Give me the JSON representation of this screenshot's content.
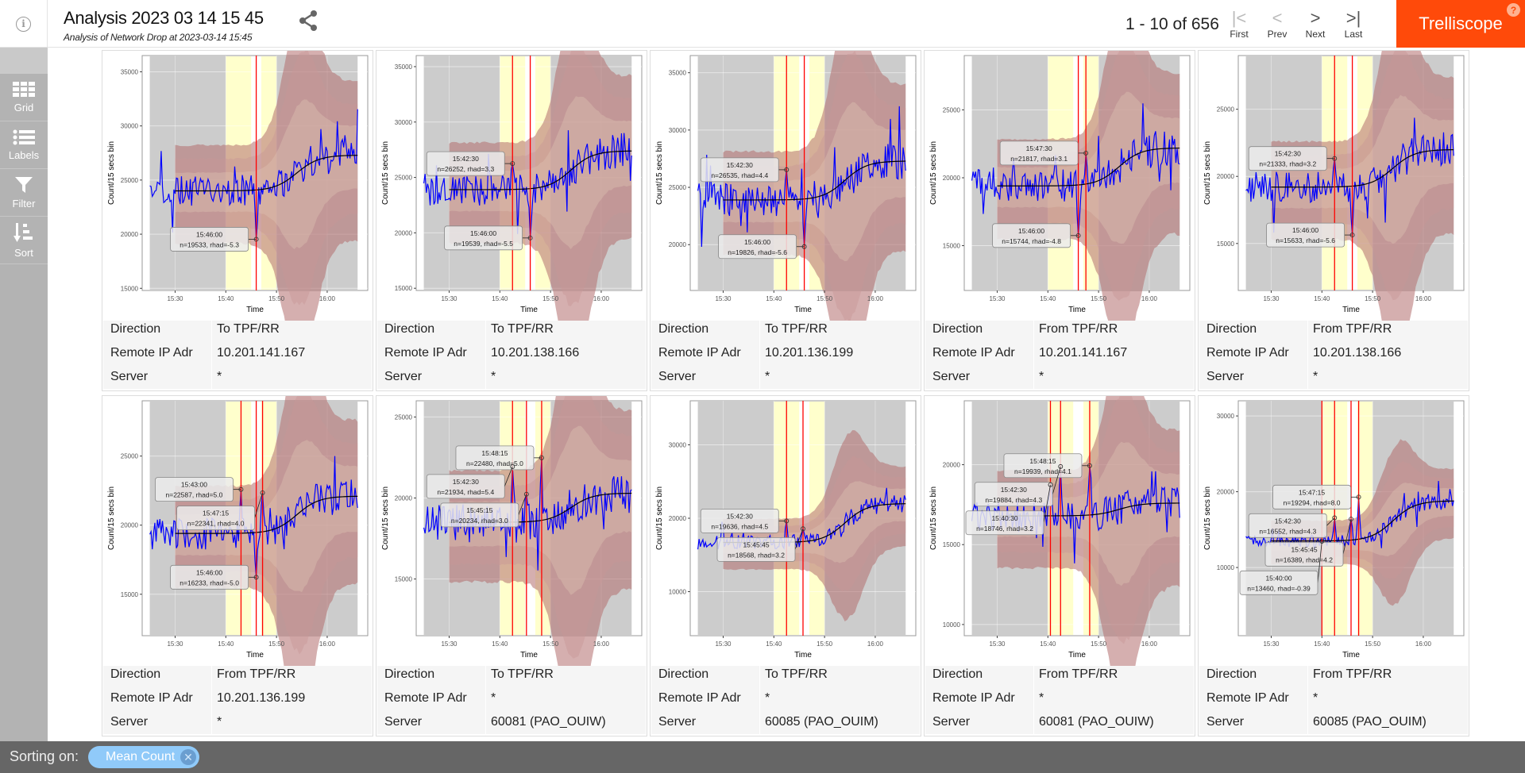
{
  "header": {
    "title": "Analysis 2023 03 14 15 45",
    "subtitle": "Analysis of Network Drop at 2023-03-14 15:45",
    "pager": "1 - 10 of 656",
    "nav": [
      {
        "label": "First",
        "icon": "first-page-icon",
        "glyph": "|<"
      },
      {
        "label": "Prev",
        "icon": "chevron-left-icon",
        "glyph": "<"
      },
      {
        "label": "Next",
        "icon": "chevron-right-icon",
        "glyph": ">"
      },
      {
        "label": "Last",
        "icon": "last-page-icon",
        "glyph": ">|"
      }
    ],
    "brand": "Trelliscope",
    "help": "?"
  },
  "sidebar": {
    "items": [
      {
        "label": "Grid",
        "icon": "grid-icon"
      },
      {
        "label": "Labels",
        "icon": "list-icon"
      },
      {
        "label": "Filter",
        "icon": "filter-icon"
      },
      {
        "label": "Sort",
        "icon": "sort-icon"
      }
    ]
  },
  "footer": {
    "sorting_label": "Sorting on:",
    "sort_pill": "Mean Count",
    "remove": "✕"
  },
  "colors": {
    "brand": "#ff4a0a",
    "series": "#0000ff",
    "median": "#000000",
    "event_line": "#ff0000",
    "highlight": "#ffffcc",
    "pill": "#90caf9"
  },
  "plot_common": {
    "ylabel": "Count/15 secs bin",
    "xlabel": "Time",
    "xticks": [
      "15:30",
      "15:40",
      "15:50",
      "16:00"
    ]
  },
  "meta_keys": [
    "Direction",
    "Remote IP Adr",
    "Server"
  ],
  "panels": [
    {
      "meta": [
        "To TPF/RR",
        "10.201.141.167",
        "*"
      ],
      "yticks": [
        15000,
        20000,
        25000,
        30000,
        35000
      ],
      "ylim": [
        14800,
        36500
      ],
      "median": [
        24000,
        27300
      ],
      "events": [
        "15:46:00"
      ],
      "annotations": [
        {
          "time": "15:46:00",
          "label": "n=19533, rhad=-5.3",
          "n": 19533
        }
      ]
    },
    {
      "meta": [
        "To TPF/RR",
        "10.201.138.166",
        "*"
      ],
      "yticks": [
        15000,
        20000,
        25000,
        30000,
        35000
      ],
      "ylim": [
        14800,
        36000
      ],
      "median": [
        23900,
        27400
      ],
      "events": [
        "15:42:30",
        "15:46:00"
      ],
      "annotations": [
        {
          "time": "15:42:30",
          "label": "n=26252, rhad=3.3",
          "n": 26252
        },
        {
          "time": "15:46:00",
          "label": "n=19539, rhad=-5.5",
          "n": 19539
        }
      ]
    },
    {
      "meta": [
        "To TPF/RR",
        "10.201.136.199",
        "*"
      ],
      "yticks": [
        20000,
        25000,
        30000,
        35000
      ],
      "ylim": [
        16000,
        36500
      ],
      "median": [
        23900,
        27300
      ],
      "events": [
        "15:42:30",
        "15:46:00"
      ],
      "annotations": [
        {
          "time": "15:42:30",
          "label": "n=26535, rhad=4.4",
          "n": 26535
        },
        {
          "time": "15:46:00",
          "label": "n=19826, rhad=-5.6",
          "n": 19826
        }
      ]
    },
    {
      "meta": [
        "From TPF/RR",
        "10.201.141.167",
        "*"
      ],
      "yticks": [
        15000,
        20000,
        25000
      ],
      "ylim": [
        11700,
        29000
      ],
      "median": [
        19400,
        22200
      ],
      "events": [
        "15:46:00",
        "15:47:30"
      ],
      "annotations": [
        {
          "time": "15:47:30",
          "label": "n=21817, rhad=3.1",
          "n": 21817
        },
        {
          "time": "15:46:00",
          "label": "n=15744, rhad=-4.8",
          "n": 15744
        }
      ]
    },
    {
      "meta": [
        "From TPF/RR",
        "10.201.138.166",
        "*"
      ],
      "yticks": [
        15000,
        20000,
        25000
      ],
      "ylim": [
        11500,
        29000
      ],
      "median": [
        19200,
        22000
      ],
      "events": [
        "15:42:30",
        "15:46:00"
      ],
      "annotations": [
        {
          "time": "15:42:30",
          "label": "n=21333, rhad=3.2",
          "n": 21333
        },
        {
          "time": "15:46:00",
          "label": "n=15633, rhad=-5.6",
          "n": 15633
        }
      ]
    },
    {
      "meta": [
        "From TPF/RR",
        "10.201.136.199",
        "*"
      ],
      "yticks": [
        15000,
        20000,
        25000
      ],
      "ylim": [
        12000,
        29000
      ],
      "median": [
        19400,
        22100
      ],
      "events": [
        "15:43:00",
        "15:46:00",
        "15:47:15"
      ],
      "annotations": [
        {
          "time": "15:43:00",
          "label": "n=22587, rhad=5.0",
          "n": 22587
        },
        {
          "time": "15:47:15",
          "label": "n=22341, rhad=4.0",
          "n": 22341
        },
        {
          "time": "15:46:00",
          "label": "n=16233, rhad=-5.0",
          "n": 16233
        }
      ]
    },
    {
      "meta": [
        "To TPF/RR",
        "*",
        "60081 (PAO_OUIW)"
      ],
      "yticks": [
        15000,
        20000,
        25000
      ],
      "ylim": [
        11500,
        26000
      ],
      "median": [
        18500,
        20300
      ],
      "events": [
        "15:42:30",
        "15:45:15",
        "15:48:15"
      ],
      "annotations": [
        {
          "time": "15:48:15",
          "label": "n=22480, rhad=5.0",
          "n": 22480
        },
        {
          "time": "15:42:30",
          "label": "n=21934, rhad=5.4",
          "n": 21934
        },
        {
          "time": "15:45:15",
          "label": "n=20234, rhad=3.0",
          "n": 20234
        }
      ]
    },
    {
      "meta": [
        "To TPF/RR",
        "*",
        "60085 (PAO_OUIM)"
      ],
      "yticks": [
        10000,
        20000,
        30000
      ],
      "ylim": [
        4000,
        36000
      ],
      "median": [
        16700,
        22000
      ],
      "events": [
        "15:42:30",
        "15:45:45"
      ],
      "annotations": [
        {
          "time": "15:42:30",
          "label": "n=19636, rhad=4.5",
          "n": 19636
        },
        {
          "time": "15:45:45",
          "label": "n=18568, rhad=3.2",
          "n": 18568
        }
      ]
    },
    {
      "meta": [
        "From TPF/RR",
        "*",
        "60081 (PAO_OUIW)"
      ],
      "yticks": [
        10000,
        15000,
        20000
      ],
      "ylim": [
        9300,
        24000
      ],
      "median": [
        16800,
        17600
      ],
      "events": [
        "15:40:30",
        "15:42:30",
        "15:48:15"
      ],
      "annotations": [
        {
          "time": "15:48:15",
          "label": "n=19939, rhad=4.1",
          "n": 19939
        },
        {
          "time": "15:42:30",
          "label": "n=19884, rhad=4.3",
          "n": 19884
        },
        {
          "time": "15:40:30",
          "label": "n=18746, rhad=3.2",
          "n": 18746
        }
      ]
    },
    {
      "meta": [
        "From TPF/RR",
        "*",
        "60085 (PAO_OUIM)"
      ],
      "yticks": [
        10000,
        20000,
        30000
      ],
      "ylim": [
        1000,
        32000
      ],
      "median": [
        13500,
        18800
      ],
      "events": [
        "15:40:00",
        "15:42:30",
        "15:45:45",
        "15:47:15"
      ],
      "annotations": [
        {
          "time": "15:47:15",
          "label": "n=19294, rhad=8.0",
          "n": 19294
        },
        {
          "time": "15:42:30",
          "label": "n=16552, rhad=4.3",
          "n": 16552
        },
        {
          "time": "15:45:45",
          "label": "n=16389, rhad=4.2",
          "n": 16389
        },
        {
          "time": "15:40:00",
          "label": "n=13460, rhad=-0.39",
          "n": 13460
        }
      ]
    }
  ]
}
